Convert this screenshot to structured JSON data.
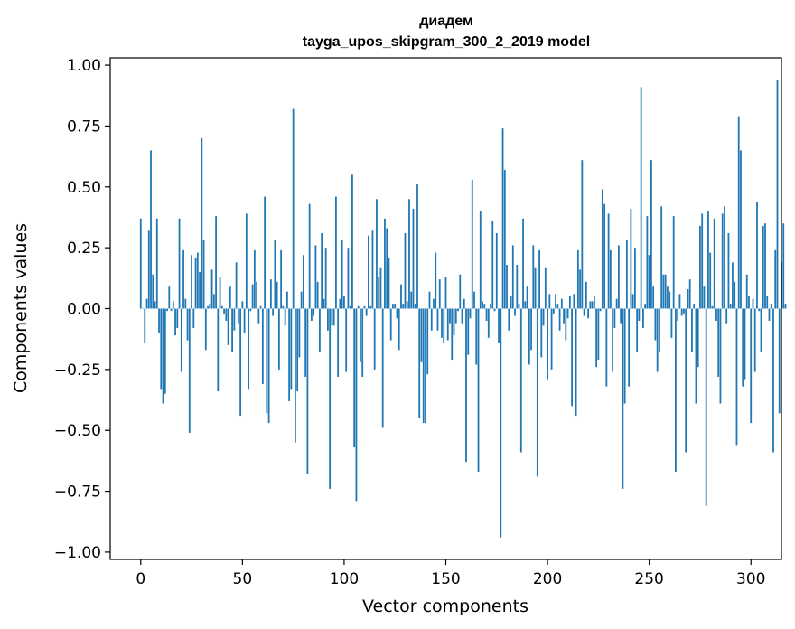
{
  "chart_data": {
    "type": "bar",
    "title": "диадем",
    "subtitle": "tayga_upos_skipgram_300_2_2019 model",
    "xlabel": "Vector components",
    "ylabel": "Components values",
    "xlim": [
      -15,
      315
    ],
    "ylim": [
      -1.03,
      1.03
    ],
    "xticks": [
      0,
      50,
      100,
      150,
      200,
      250,
      300
    ],
    "xtick_labels": [
      "0",
      "50",
      "100",
      "150",
      "200",
      "250",
      "300"
    ],
    "yticks": [
      -1.0,
      -0.75,
      -0.5,
      -0.25,
      0.0,
      0.25,
      0.5,
      0.75,
      1.0
    ],
    "ytick_labels": [
      "−1.00",
      "−0.75",
      "−0.50",
      "−0.25",
      "0.00",
      "0.25",
      "0.50",
      "0.75",
      "1.00"
    ],
    "bar_color": "#1f77b4",
    "grid": false,
    "values": [
      0.37,
      0.0,
      -0.14,
      0.04,
      0.32,
      0.65,
      0.14,
      0.03,
      0.37,
      -0.1,
      -0.33,
      -0.39,
      -0.35,
      -0.01,
      0.09,
      -0.01,
      0.03,
      -0.11,
      -0.08,
      0.37,
      -0.26,
      0.24,
      0.04,
      -0.13,
      -0.51,
      0.22,
      -0.08,
      0.21,
      0.23,
      0.15,
      0.7,
      0.28,
      -0.17,
      0.01,
      0.02,
      0.16,
      0.06,
      0.38,
      -0.34,
      0.13,
      0.01,
      -0.02,
      -0.05,
      -0.15,
      0.09,
      -0.18,
      -0.09,
      0.19,
      -0.06,
      -0.44,
      0.03,
      -0.1,
      0.39,
      -0.33,
      -0.01,
      0.1,
      0.24,
      0.11,
      -0.06,
      0.01,
      -0.31,
      0.46,
      -0.43,
      -0.47,
      0.12,
      -0.03,
      0.28,
      0.11,
      -0.25,
      0.24,
      0.01,
      -0.07,
      0.07,
      -0.38,
      -0.33,
      0.82,
      -0.55,
      -0.34,
      -0.2,
      0.07,
      0.22,
      -0.28,
      -0.68,
      0.43,
      -0.05,
      -0.03,
      0.26,
      0.11,
      -0.18,
      0.31,
      0.04,
      0.25,
      -0.09,
      -0.74,
      -0.07,
      -0.07,
      0.46,
      -0.28,
      0.04,
      0.28,
      0.05,
      -0.26,
      0.25,
      0.01,
      0.55,
      -0.57,
      -0.79,
      0.01,
      -0.22,
      -0.28,
      0.01,
      -0.03,
      0.3,
      0.01,
      0.32,
      -0.25,
      0.45,
      0.13,
      0.17,
      -0.49,
      0.37,
      0.33,
      0.21,
      -0.13,
      0.02,
      0.02,
      -0.04,
      -0.17,
      0.1,
      0.02,
      0.31,
      0.03,
      0.45,
      0.07,
      0.41,
      0.02,
      0.51,
      -0.45,
      -0.22,
      -0.47,
      -0.47,
      -0.27,
      0.07,
      -0.09,
      0.04,
      0.23,
      -0.09,
      0.12,
      -0.12,
      -0.14,
      0.13,
      -0.13,
      -0.06,
      -0.21,
      -0.11,
      -0.06,
      -0.01,
      0.14,
      -0.06,
      0.04,
      -0.63,
      -0.19,
      -0.04,
      0.53,
      0.07,
      -0.23,
      -0.67,
      0.4,
      0.03,
      0.02,
      -0.05,
      -0.12,
      0.02,
      0.36,
      -0.01,
      0.31,
      -0.14,
      -0.94,
      0.74,
      0.57,
      0.18,
      -0.09,
      0.05,
      0.26,
      -0.03,
      0.18,
      0.02,
      -0.59,
      0.37,
      0.03,
      0.09,
      -0.23,
      -0.17,
      0.26,
      0.17,
      -0.69,
      0.24,
      -0.2,
      -0.07,
      0.17,
      -0.29,
      0.06,
      -0.25,
      -0.02,
      0.06,
      0.02,
      -0.09,
      0.04,
      -0.06,
      -0.13,
      -0.04,
      0.05,
      -0.4,
      0.06,
      -0.44,
      0.24,
      0.16,
      0.61,
      -0.03,
      0.11,
      -0.04,
      0.03,
      0.03,
      0.05,
      -0.24,
      -0.21,
      -0.01,
      0.49,
      0.43,
      -0.32,
      0.39,
      0.24,
      -0.26,
      -0.08,
      0.04,
      0.26,
      -0.06,
      -0.74,
      -0.39,
      0.28,
      -0.32,
      0.41,
      0.06,
      0.25,
      -0.18,
      -0.05,
      0.91,
      -0.08,
      0.02,
      0.38,
      0.22,
      0.61,
      0.09,
      -0.13,
      -0.26,
      -0.18,
      0.42,
      0.14,
      0.14,
      0.09,
      0.07,
      -0.12,
      0.38,
      -0.67,
      -0.05,
      0.06,
      -0.03,
      -0.02,
      -0.59,
      0.08,
      0.12,
      -0.18,
      0.02,
      -0.39,
      -0.24,
      0.34,
      0.39,
      0.09,
      -0.81,
      0.4,
      0.23,
      0.01,
      0.37,
      -0.05,
      -0.28,
      -0.39,
      0.39,
      0.42,
      -0.06,
      0.31,
      0.02,
      0.19,
      0.11,
      -0.56,
      0.79,
      0.65,
      -0.32,
      -0.29,
      0.14,
      0.05,
      -0.47,
      0.04,
      -0.26,
      0.44,
      -0.01,
      -0.18,
      0.34,
      0.35,
      0.05,
      -0.05,
      0.02,
      -0.59,
      0.24,
      0.94,
      -0.43,
      0.19,
      0.35,
      0.02
    ]
  }
}
